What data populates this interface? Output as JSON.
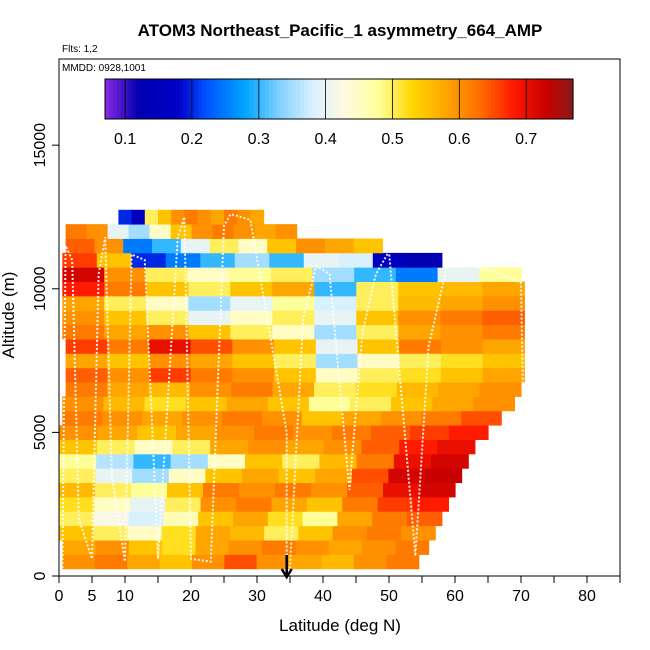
{
  "chart_data": {
    "type": "heatmap",
    "title": "ATOM3 Northeast_Pacific_1 asymmetry_664_AMP",
    "subtitle_flights": "Flts: 1,2",
    "subtitle_dates": "MMDD: 0928,1001",
    "xlabel": "Latitude (deg N)",
    "ylabel": "Altitude (m)",
    "xlim": [
      0,
      85
    ],
    "ylim": [
      0,
      18000
    ],
    "x_ticks": [
      0,
      5,
      10,
      20,
      30,
      40,
      50,
      60,
      70,
      80
    ],
    "x_minor_ticks": [
      15,
      25,
      35,
      45,
      55,
      65,
      75,
      85
    ],
    "y_ticks": [
      0,
      5000,
      10000,
      15000
    ],
    "colorbar": {
      "range": [
        0.07,
        0.77
      ],
      "ticks": [
        0.1,
        0.2,
        0.3,
        0.4,
        0.5,
        0.6,
        0.7
      ],
      "stops": [
        [
          0.07,
          "#8a2be2"
        ],
        [
          0.12,
          "#0000b0"
        ],
        [
          0.18,
          "#0000c8"
        ],
        [
          0.22,
          "#0050ff"
        ],
        [
          0.28,
          "#00a6ff"
        ],
        [
          0.33,
          "#7fd0ff"
        ],
        [
          0.38,
          "#d9f0ff"
        ],
        [
          0.43,
          "#fffbe0"
        ],
        [
          0.48,
          "#ffff99"
        ],
        [
          0.53,
          "#ffd700"
        ],
        [
          0.58,
          "#ffa500"
        ],
        [
          0.63,
          "#ff7000"
        ],
        [
          0.68,
          "#ff1a00"
        ],
        [
          0.73,
          "#c80000"
        ],
        [
          0.77,
          "#8b1a1a"
        ]
      ]
    },
    "altitude_bands": [
      {
        "alt": 500,
        "lat": [
          0.5,
          54.5
        ],
        "values": [
          0.6,
          0.62,
          0.58,
          0.55,
          0.6,
          0.65,
          0.6,
          0.58,
          0.56,
          0.6,
          0.62
        ]
      },
      {
        "alt": 1000,
        "lat": [
          0.5,
          56
        ],
        "values": [
          0.58,
          0.6,
          0.55,
          0.52,
          0.58,
          0.6,
          0.62,
          0.6,
          0.58,
          0.6,
          0.62
        ]
      },
      {
        "alt": 1500,
        "lat": [
          0,
          57
        ],
        "values": [
          0.55,
          0.5,
          0.45,
          0.52,
          0.58,
          0.56,
          0.5,
          0.55,
          0.6,
          0.62,
          0.6
        ]
      },
      {
        "alt": 2000,
        "lat": [
          0,
          58
        ],
        "values": [
          0.5,
          0.42,
          0.38,
          0.46,
          0.55,
          0.58,
          0.52,
          0.48,
          0.58,
          0.62,
          0.64
        ]
      },
      {
        "alt": 2500,
        "lat": [
          0,
          59
        ],
        "values": [
          0.52,
          0.45,
          0.4,
          0.5,
          0.6,
          0.62,
          0.58,
          0.55,
          0.62,
          0.66,
          0.68
        ]
      },
      {
        "alt": 3000,
        "lat": [
          0,
          60
        ],
        "values": [
          0.56,
          0.5,
          0.48,
          0.55,
          0.62,
          0.6,
          0.62,
          0.6,
          0.64,
          0.7,
          0.72
        ]
      },
      {
        "alt": 3500,
        "lat": [
          0,
          61
        ],
        "values": [
          0.5,
          0.4,
          0.35,
          0.45,
          0.55,
          0.58,
          0.55,
          0.58,
          0.65,
          0.72,
          0.73
        ]
      },
      {
        "alt": 4000,
        "lat": [
          0,
          62
        ],
        "values": [
          0.48,
          0.36,
          0.3,
          0.35,
          0.45,
          0.55,
          0.5,
          0.56,
          0.62,
          0.7,
          0.72
        ]
      },
      {
        "alt": 4500,
        "lat": [
          0,
          63
        ],
        "values": [
          0.55,
          0.5,
          0.45,
          0.5,
          0.58,
          0.6,
          0.58,
          0.6,
          0.64,
          0.68,
          0.7
        ]
      },
      {
        "alt": 5000,
        "lat": [
          0,
          65
        ],
        "values": [
          0.6,
          0.58,
          0.55,
          0.58,
          0.6,
          0.62,
          0.6,
          0.62,
          0.64,
          0.66,
          0.68
        ]
      },
      {
        "alt": 5500,
        "lat": [
          0.5,
          67
        ],
        "values": [
          0.62,
          0.6,
          0.58,
          0.6,
          0.62,
          0.6,
          0.55,
          0.58,
          0.6,
          0.62,
          0.65
        ]
      },
      {
        "alt": 6000,
        "lat": [
          0.5,
          69
        ],
        "values": [
          0.6,
          0.56,
          0.52,
          0.55,
          0.58,
          0.55,
          0.48,
          0.5,
          0.55,
          0.58,
          0.6
        ]
      },
      {
        "alt": 6500,
        "lat": [
          1,
          70
        ],
        "values": [
          0.62,
          0.58,
          0.56,
          0.6,
          0.62,
          0.58,
          0.5,
          0.52,
          0.56,
          0.58,
          0.6
        ]
      },
      {
        "alt": 7000,
        "lat": [
          1,
          70.5
        ],
        "values": [
          0.64,
          0.6,
          0.66,
          0.62,
          0.6,
          0.55,
          0.45,
          0.5,
          0.52,
          0.55,
          0.58
        ]
      },
      {
        "alt": 7500,
        "lat": [
          1,
          70.5
        ],
        "values": [
          0.58,
          0.55,
          0.6,
          0.58,
          0.55,
          0.5,
          0.35,
          0.45,
          0.5,
          0.52,
          0.55
        ]
      },
      {
        "alt": 8000,
        "lat": [
          1,
          70.5
        ],
        "values": [
          0.66,
          0.62,
          0.7,
          0.65,
          0.6,
          0.55,
          0.4,
          0.55,
          0.62,
          0.6,
          0.58
        ]
      },
      {
        "alt": 8500,
        "lat": [
          0.5,
          70.5
        ],
        "values": [
          0.62,
          0.58,
          0.6,
          0.55,
          0.5,
          0.45,
          0.35,
          0.5,
          0.58,
          0.6,
          0.62
        ]
      },
      {
        "alt": 9000,
        "lat": [
          0.5,
          70.5
        ],
        "values": [
          0.6,
          0.55,
          0.5,
          0.4,
          0.45,
          0.5,
          0.4,
          0.55,
          0.6,
          0.62,
          0.64
        ]
      },
      {
        "alt": 9500,
        "lat": [
          0.5,
          70.5
        ],
        "values": [
          0.58,
          0.5,
          0.45,
          0.35,
          0.4,
          0.48,
          0.38,
          0.5,
          0.56,
          0.58,
          0.6
        ]
      },
      {
        "alt": 10000,
        "lat": [
          0.5,
          70.5
        ],
        "values": [
          0.68,
          0.62,
          0.55,
          0.5,
          0.55,
          0.58,
          0.3,
          0.5,
          0.55,
          0.56,
          0.58
        ]
      },
      {
        "alt": 10500,
        "lat": [
          0.5,
          70
        ],
        "values": [
          0.72,
          0.6,
          0.5,
          0.45,
          0.48,
          0.5,
          0.35,
          0.3,
          0.25,
          0.4,
          0.48
        ]
      },
      {
        "alt": 11000,
        "lat": [
          0.5,
          58
        ],
        "values": [
          0.66,
          0.55,
          0.2,
          0.25,
          0.3,
          0.35,
          0.3,
          0.4,
          0.38,
          0.15,
          0.12
        ]
      },
      {
        "alt": 11500,
        "lat": [
          1,
          49
        ],
        "values": [
          0.64,
          0.6,
          0.25,
          0.3,
          0.4,
          0.5,
          0.45,
          0.55,
          0.6,
          0.58,
          0.55
        ]
      },
      {
        "alt": 12000,
        "lat": [
          1,
          36
        ],
        "values": [
          0.62,
          0.6,
          0.4,
          0.35,
          0.45,
          0.55,
          0.6,
          0.62,
          0.6,
          0.58,
          0.6
        ]
      },
      {
        "alt": 12500,
        "lat": [
          9,
          31
        ],
        "values": [
          0.2,
          0.15,
          0.5,
          0.55,
          0.6,
          0.62,
          0.6,
          0.58,
          0.62,
          0.6,
          0.58
        ]
      }
    ],
    "flight_track_color": "#ffffff",
    "arrow_marker_lat": 34.5
  }
}
